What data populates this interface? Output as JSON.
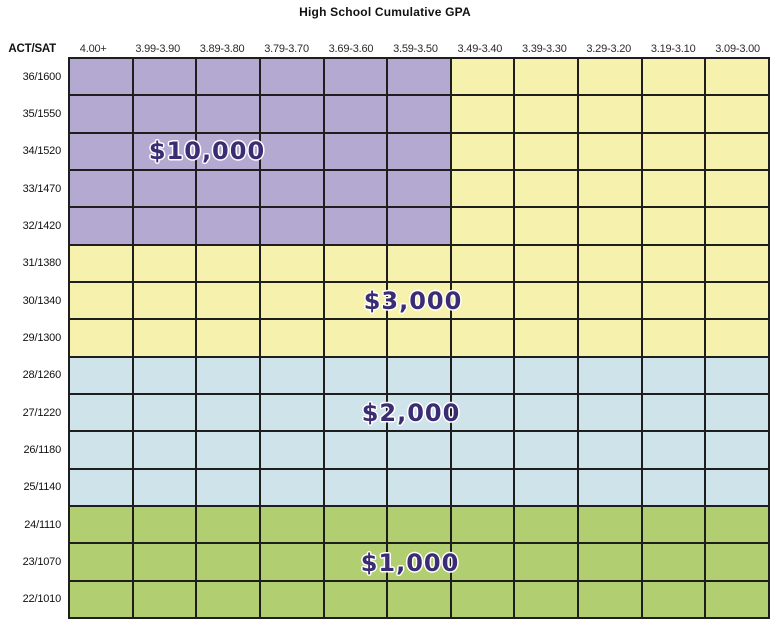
{
  "title": "High School Cumulative GPA",
  "corner_label": "ACT/SAT",
  "columns": [
    "4.00+",
    "3.99-3.90",
    "3.89-3.80",
    "3.79-3.70",
    "3.69-3.60",
    "3.59-3.50",
    "3.49-3.40",
    "3.39-3.30",
    "3.29-3.20",
    "3.19-3.10",
    "3.09-3.00"
  ],
  "rows": [
    "36/1600",
    "35/1550",
    "34/1520",
    "33/1470",
    "32/1420",
    "31/1380",
    "30/1340",
    "29/1300",
    "28/1260",
    "27/1220",
    "26/1180",
    "25/1140",
    "24/1110",
    "23/1070",
    "22/1010"
  ],
  "regions": [
    {
      "award": "$10,000",
      "color": "#b4aad1",
      "rects": [
        [
          0,
          4,
          0,
          5
        ]
      ]
    },
    {
      "award": "$3,000",
      "color": "#f6f2ae",
      "rects": [
        [
          0,
          4,
          6,
          10
        ],
        [
          5,
          7,
          0,
          10
        ]
      ]
    },
    {
      "award": "$2,000",
      "color": "#cee4ea",
      "rects": [
        [
          8,
          11,
          0,
          10
        ]
      ]
    },
    {
      "award": "$1,000",
      "color": "#b1ce70",
      "rects": [
        [
          12,
          14,
          0,
          10
        ]
      ]
    }
  ],
  "colors": {
    "grid_line": "#1e1e1e",
    "award_text": "#3b2d73",
    "purple_region": "#b4aad1",
    "yellow_region": "#f6f2ae",
    "blue_region": "#cee4ea",
    "green_region": "#b1ce70",
    "header_text": "#2b2b2b"
  },
  "chart_data": {
    "type": "heatmap",
    "title": "High School Cumulative GPA",
    "x_label": "High School Cumulative GPA",
    "y_label": "ACT/SAT",
    "x_categories": [
      "4.00+",
      "3.99-3.90",
      "3.89-3.80",
      "3.79-3.70",
      "3.69-3.60",
      "3.59-3.50",
      "3.49-3.40",
      "3.39-3.30",
      "3.29-3.20",
      "3.19-3.10",
      "3.09-3.00"
    ],
    "y_categories": [
      "36/1600",
      "35/1550",
      "34/1520",
      "33/1470",
      "32/1420",
      "31/1380",
      "30/1340",
      "29/1300",
      "28/1260",
      "27/1220",
      "26/1180",
      "25/1140",
      "24/1110",
      "23/1070",
      "22/1010"
    ],
    "legend_position": "none",
    "grid": true,
    "regions": [
      {
        "award_usd": 10000,
        "label": "$10,000",
        "color": "#b4aad1",
        "act_sat_from": "36/1600",
        "act_sat_to": "32/1420",
        "gpa_from": "4.00+",
        "gpa_to": "3.59-3.50"
      },
      {
        "award_usd": 3000,
        "label": "$3,000",
        "color": "#f6f2ae",
        "coverage": "GPA 3.49-3.40 through 3.09-3.00 for ACT/SAT 36/1600 through 32/1420, plus all GPA columns for ACT/SAT 31/1380 through 29/1300"
      },
      {
        "award_usd": 2000,
        "label": "$2,000",
        "color": "#cee4ea",
        "act_sat_from": "28/1260",
        "act_sat_to": "25/1140",
        "gpa_from": "4.00+",
        "gpa_to": "3.09-3.00"
      },
      {
        "award_usd": 1000,
        "label": "$1,000",
        "color": "#b1ce70",
        "act_sat_from": "24/1110",
        "act_sat_to": "22/1010",
        "gpa_from": "4.00+",
        "gpa_to": "3.09-3.00"
      }
    ]
  }
}
